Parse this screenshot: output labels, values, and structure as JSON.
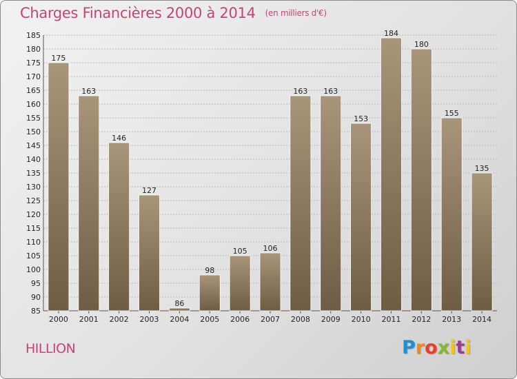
{
  "header": {
    "title": "Charges Financières 2000 à 2014",
    "subtitle": "(en milliers d'€)"
  },
  "commune": "HILLION",
  "logo": {
    "text": "Proxiti"
  },
  "colors": {
    "title": "#c5427a",
    "bar_top": "#a8957a",
    "bar_bottom": "#6e5c44",
    "grid": "#b8b8b8"
  },
  "chart_data": {
    "type": "bar",
    "title": "Charges Financières 2000 à 2014",
    "subtitle": "(en milliers d'€)",
    "xlabel": "",
    "ylabel": "",
    "categories": [
      "2000",
      "2001",
      "2002",
      "2003",
      "2004",
      "2005",
      "2006",
      "2007",
      "2008",
      "2009",
      "2010",
      "2011",
      "2012",
      "2013",
      "2014"
    ],
    "values": [
      175,
      163,
      146,
      127,
      86,
      98,
      105,
      106,
      163,
      163,
      153,
      184,
      180,
      155,
      135
    ],
    "ylim": [
      85,
      185
    ],
    "ytick_step": 5,
    "grid": true,
    "legend": "none"
  }
}
